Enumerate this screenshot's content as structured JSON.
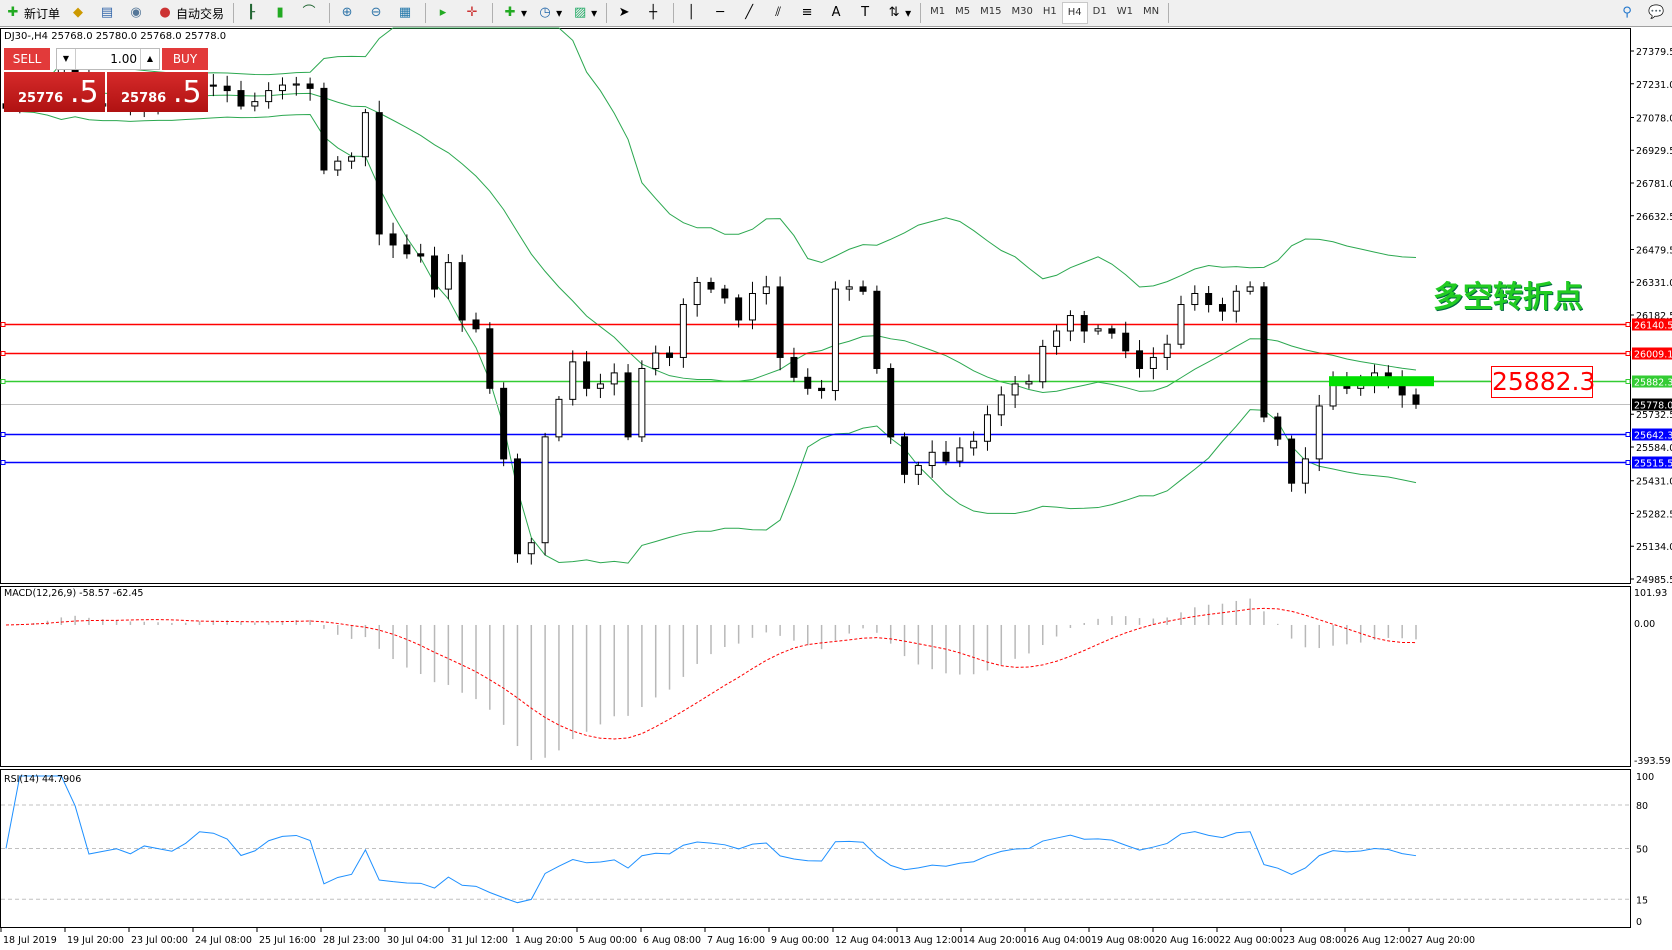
{
  "toolbar": {
    "new_order": "新订单",
    "auto_trading": "自动交易",
    "timeframes": [
      "M1",
      "M5",
      "M15",
      "M30",
      "H1",
      "H4",
      "D1",
      "W1",
      "MN"
    ],
    "active_timeframe": "H4"
  },
  "chart_header": "DJ30-,H4  25768.0 25780.0 25768.0 25778.0",
  "trade_panel": {
    "sell_label": "SELL",
    "buy_label": "BUY",
    "lot": "1.00",
    "sell_price_main": "25776",
    "sell_price_big": ".5",
    "buy_price_main": "25786",
    "buy_price_big": ".5"
  },
  "annotation": {
    "text": "多空转折点",
    "level_label": "25882.3",
    "color": "#22cc22"
  },
  "price_axis": {
    "ticks": [
      "27379.5",
      "27231.0",
      "27078.0",
      "26929.5",
      "26781.0",
      "26632.5",
      "26479.5",
      "26331.0",
      "26182.5",
      "25732.5",
      "25584.0",
      "25431.0",
      "25282.5",
      "25134.0",
      "24985.5"
    ],
    "range": [
      24985.5,
      27379.5
    ]
  },
  "levels": [
    {
      "price": 26140.5,
      "label": "26140.5",
      "color": "#ff0000"
    },
    {
      "price": 26009.1,
      "label": "26009.1",
      "color": "#ff0000"
    },
    {
      "price": 25882.3,
      "label": "25882.3",
      "color": "#33cc33"
    },
    {
      "price": 25778.0,
      "label": "25778.0",
      "color": "#000000",
      "current": true
    },
    {
      "price": 25642.3,
      "label": "25642.3",
      "color": "#0000ff"
    },
    {
      "price": 25515.5,
      "label": "25515.5",
      "color": "#0000ff"
    }
  ],
  "macd": {
    "legend": "MACD(12,26,9) -58.57 -62.45",
    "ticks": [
      "101.93",
      "0.00",
      "-393.59"
    ],
    "range": [
      -393.59,
      101.93
    ]
  },
  "rsi": {
    "legend": "RSI(14) 44.7906",
    "ticks": [
      "100",
      "80",
      "50",
      "15",
      "0"
    ],
    "levels": [
      80,
      50,
      15
    ]
  },
  "time_axis": [
    "18 Jul 2019",
    "19 Jul 20:00",
    "23 Jul 00:00",
    "24 Jul 08:00",
    "25 Jul 16:00",
    "28 Jul 23:00",
    "30 Jul 04:00",
    "31 Jul 12:00",
    "1 Aug 20:00",
    "5 Aug 00:00",
    "6 Aug 08:00",
    "7 Aug 16:00",
    "9 Aug 00:00",
    "12 Aug 04:00",
    "13 Aug 12:00",
    "14 Aug 20:00",
    "16 Aug 04:00",
    "19 Aug 08:00",
    "20 Aug 16:00",
    "22 Aug 00:00",
    "23 Aug 08:00",
    "26 Aug 12:00",
    "27 Aug 20:00"
  ],
  "chart_data": {
    "type": "candlestick",
    "symbol": "DJ30-",
    "timeframe": "H4",
    "approx_closes": [
      27120,
      27150,
      27180,
      27230,
      27300,
      27260,
      27130,
      27140,
      27150,
      27130,
      27160,
      27150,
      27140,
      27170,
      27225,
      27220,
      27200,
      27130,
      27150,
      27200,
      27225,
      27230,
      27210,
      26840,
      26880,
      26900,
      27100,
      26550,
      26500,
      26460,
      26450,
      26300,
      26420,
      26160,
      26120,
      25850,
      25530,
      25100,
      25150,
      25630,
      25800,
      25970,
      25850,
      25870,
      25920,
      25630,
      25940,
      26010,
      25990,
      26230,
      26330,
      26300,
      26260,
      26160,
      26280,
      26310,
      25990,
      25900,
      25850,
      25840,
      26300,
      26310,
      26290,
      25940,
      25630,
      25460,
      25500,
      25560,
      25520,
      25580,
      25610,
      25730,
      25820,
      25870,
      25880,
      26040,
      26110,
      26180,
      26110,
      26120,
      26100,
      26020,
      25940,
      25990,
      26050,
      26230,
      26280,
      26230,
      26200,
      26290,
      26310,
      25720,
      25620,
      25420,
      25530,
      25770,
      25880,
      25850,
      25870,
      25920,
      25900,
      25820,
      25778
    ]
  }
}
